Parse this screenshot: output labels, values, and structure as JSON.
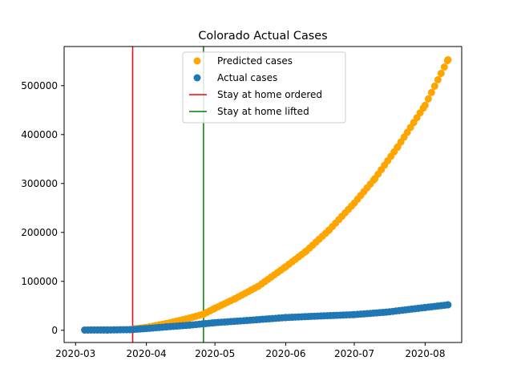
{
  "chart_data": {
    "type": "scatter",
    "title": "Colorado Actual Cases",
    "xlabel": "",
    "ylabel": "",
    "x_range": [
      "2020-02-25",
      "2020-08-17"
    ],
    "ylim": [
      -25000,
      580000
    ],
    "x_ticks": [
      "2020-03",
      "2020-04",
      "2020-05",
      "2020-06",
      "2020-07",
      "2020-08"
    ],
    "x_tick_dates": [
      "2020-03-01",
      "2020-04-01",
      "2020-05-01",
      "2020-06-01",
      "2020-07-01",
      "2020-08-01"
    ],
    "y_ticks": [
      0,
      100000,
      200000,
      300000,
      400000,
      500000
    ],
    "grid": false,
    "legend_position": "upper center",
    "series": [
      {
        "name": "Predicted cases",
        "kind": "scatter",
        "color": "#ffa500",
        "points": [
          [
            "2020-03-05",
            500
          ],
          [
            "2020-03-15",
            800
          ],
          [
            "2020-03-25",
            1500
          ],
          [
            "2020-03-27",
            3000
          ],
          [
            "2020-04-01",
            6000
          ],
          [
            "2020-04-10",
            14000
          ],
          [
            "2020-04-20",
            25000
          ],
          [
            "2020-04-26",
            33000
          ],
          [
            "2020-05-01",
            45000
          ],
          [
            "2020-05-10",
            65000
          ],
          [
            "2020-05-20",
            90000
          ],
          [
            "2020-06-01",
            130000
          ],
          [
            "2020-06-10",
            162000
          ],
          [
            "2020-06-20",
            205000
          ],
          [
            "2020-07-01",
            260000
          ],
          [
            "2020-07-10",
            310000
          ],
          [
            "2020-07-20",
            375000
          ],
          [
            "2020-08-01",
            460000
          ],
          [
            "2020-08-11",
            553000
          ]
        ]
      },
      {
        "name": "Actual cases",
        "kind": "scatter",
        "color": "#1f77b4",
        "points": [
          [
            "2020-03-05",
            500
          ],
          [
            "2020-03-15",
            600
          ],
          [
            "2020-03-25",
            1200
          ],
          [
            "2020-04-01",
            3500
          ],
          [
            "2020-04-10",
            7000
          ],
          [
            "2020-04-20",
            10500
          ],
          [
            "2020-05-01",
            15500
          ],
          [
            "2020-05-15",
            20000
          ],
          [
            "2020-06-01",
            26000
          ],
          [
            "2020-06-15",
            29000
          ],
          [
            "2020-07-01",
            32000
          ],
          [
            "2020-07-15",
            37000
          ],
          [
            "2020-08-01",
            46500
          ],
          [
            "2020-08-11",
            52000
          ]
        ]
      },
      {
        "name": "Stay at home ordered",
        "kind": "vline",
        "color": "#ff0000",
        "x": "2020-03-26"
      },
      {
        "name": "Stay at home lifted",
        "kind": "vline",
        "color": "#008000",
        "x": "2020-04-26"
      }
    ]
  }
}
